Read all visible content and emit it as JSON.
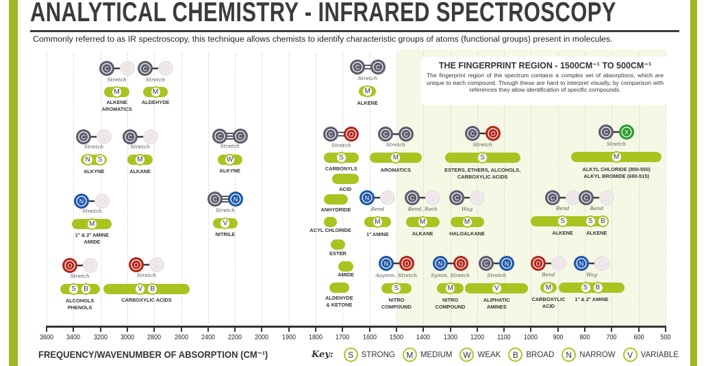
{
  "header": {
    "title": "ANALYTICAL CHEMISTRY - INFRARED SPECTROSCOPY",
    "subtitle": "Commonly referred to as IR spectroscopy, this technique allows chemists to identify characteristic groups of atoms (functional groups) present in molecules."
  },
  "fingerprint": {
    "title": "THE FINGERPRINT REGION - 1500CM⁻¹ TO 500CM⁻¹",
    "body": "The fingerprint region of the spectrum contains a complex set of absorptions, which are unique to each compound. Though these are hard to interpret visually, by comparison with references they allow identification of specific compounds.",
    "range": [
      1500,
      500
    ]
  },
  "axis": {
    "title": "FREQUENCY/WAVENUMBER OF ABSORPTION (CM⁻¹)",
    "ticks": [
      3600,
      3400,
      3200,
      3000,
      2800,
      2600,
      2400,
      2200,
      2000,
      1900,
      1800,
      1700,
      1600,
      1500,
      1400,
      1300,
      1200,
      1100,
      1000,
      900,
      800,
      700,
      600,
      500
    ]
  },
  "key": {
    "label": "Key:",
    "items": [
      {
        "code": "S",
        "text": "STRONG"
      },
      {
        "code": "M",
        "text": "MEDIUM"
      },
      {
        "code": "W",
        "text": "WEAK"
      },
      {
        "code": "B",
        "text": "BROAD"
      },
      {
        "code": "N",
        "text": "NARROW"
      },
      {
        "code": "V",
        "text": "VARIABLE"
      }
    ]
  },
  "colors": {
    "bar": "#a8c421",
    "C": "#5d5d6e",
    "H": "#ebe3e6",
    "O": "#b3281b",
    "N": "#1d58a8",
    "X": "#2f9a33",
    "border": "#9dbb1e",
    "fingerprint_bg": "#f6f8e6"
  },
  "items": [
    {
      "id": "a1",
      "atoms": [
        "C",
        "H"
      ],
      "bond": "single",
      "motion": "Stretch",
      "range": [
        3170,
        2985
      ],
      "badges": [
        "M"
      ],
      "label": [
        "ALKENE",
        "AROMATICS"
      ]
    },
    {
      "id": "a2",
      "atoms": [
        "C",
        "H"
      ],
      "bond": "single",
      "motion": "Stretch",
      "range": [
        2880,
        2700
      ],
      "badges": [
        "M"
      ],
      "label": [
        "ALDEHYDE"
      ]
    },
    {
      "id": "a3",
      "atoms": [
        "C",
        "H"
      ],
      "bond": "single",
      "motion": "Stretch",
      "range": [
        3345,
        3150
      ],
      "badges": [
        "N",
        "S"
      ],
      "label": [
        "ALKYNE"
      ]
    },
    {
      "id": "a4",
      "atoms": [
        "C",
        "H"
      ],
      "bond": "single",
      "motion": "Stretch",
      "range": [
        3000,
        2810
      ],
      "badges": [
        "M"
      ],
      "label": [
        "ALKANE"
      ]
    },
    {
      "id": "a5",
      "atoms": [
        "C",
        "C"
      ],
      "bond": "triple",
      "motion": "Stretch",
      "range": [
        2330,
        2145
      ],
      "badges": [
        "W"
      ],
      "label": [
        "ALKYNE"
      ]
    },
    {
      "id": "a6",
      "atoms": [
        "N",
        "H"
      ],
      "bond": "single",
      "motion": "Stretch",
      "range": [
        3410,
        3115
      ],
      "badges": [
        "M"
      ],
      "label": [
        "1° & 2° AMINE",
        "AMIDE"
      ]
    },
    {
      "id": "a7",
      "atoms": [
        "C",
        "N"
      ],
      "bond": "triple",
      "motion": "Stretch",
      "range": [
        2365,
        2180
      ],
      "badges": [
        "V"
      ],
      "label": [
        "NITRILE"
      ]
    },
    {
      "id": "a8",
      "atoms": [
        "O",
        "H"
      ],
      "bond": "single",
      "motion": "Stretch",
      "range": [
        3500,
        3205
      ],
      "badges": [
        "S",
        "B"
      ],
      "label": [
        "ALCOHOLS",
        "PHENOLS"
      ]
    },
    {
      "id": "a9",
      "atoms": [
        "O",
        "H"
      ],
      "bond": "single",
      "motion": "Stretch",
      "range": [
        3180,
        2535
      ],
      "badges": [
        "V",
        "B"
      ],
      "label": [
        "CARBOXYLIC ACIDS"
      ]
    },
    {
      "id": "b1",
      "atoms": [
        "C",
        "C"
      ],
      "bond": "double",
      "motion": "Stretch",
      "range": [
        1640,
        1575
      ],
      "badges": [
        "M"
      ],
      "label": [
        "ALKENE"
      ]
    },
    {
      "id": "b2",
      "atoms": [
        "C",
        "O"
      ],
      "bond": "double",
      "motion": "Stretch",
      "range": [
        1770,
        1640
      ],
      "badges": [
        "S"
      ],
      "label": [
        "CARBONYLS"
      ]
    },
    {
      "id": "b3",
      "range": [
        1740,
        1640
      ],
      "badges": [],
      "label": [
        "ACID"
      ]
    },
    {
      "id": "b4",
      "range": [
        1770,
        1680
      ],
      "badges": [],
      "label": [
        "ANHYDRIDE"
      ]
    },
    {
      "id": "b5",
      "range": [
        1770,
        1720
      ],
      "badges": [],
      "label": [
        "ACYL CHLORIDE"
      ]
    },
    {
      "id": "b6",
      "range": [
        1745,
        1690
      ],
      "badges": [],
      "label": [
        "ESTER"
      ]
    },
    {
      "id": "b7",
      "range": [
        1715,
        1660
      ],
      "badges": [],
      "label": [
        "AMIDE"
      ]
    },
    {
      "id": "b8",
      "range": [
        1750,
        1675
      ],
      "badges": [],
      "label": [
        "ALDEHYDE",
        "& KETONE"
      ]
    },
    {
      "id": "b9",
      "atoms": [
        "C",
        "C"
      ],
      "bond": "single",
      "motion": "Stretch",
      "range": [
        1600,
        1405
      ],
      "badges": [
        "M"
      ],
      "label": [
        "AROMATICS"
      ]
    },
    {
      "id": "b10",
      "atoms": [
        "N",
        "H"
      ],
      "bond": "single",
      "motion": "Bend",
      "range": [
        1620,
        1520
      ],
      "badges": [
        "M"
      ],
      "label": [
        "1° AMINE"
      ]
    },
    {
      "id": "b11",
      "atoms": [
        "C",
        "H"
      ],
      "bond": "single",
      "motion": "Bend, Rock",
      "range": [
        1465,
        1340
      ],
      "badges": [
        "M"
      ],
      "label": [
        "ALKANE"
      ]
    },
    {
      "id": "b12",
      "atoms": [
        "C",
        "H"
      ],
      "bond": "single",
      "motion": "Wag",
      "range": [
        1300,
        1175
      ],
      "badges": [
        "M"
      ],
      "label": [
        "HALOALKANE"
      ]
    },
    {
      "id": "b13",
      "atoms": [
        "N",
        "O"
      ],
      "bond": "single",
      "motion": "Asymm. Stretch",
      "range": [
        1555,
        1445
      ],
      "badges": [
        "S"
      ],
      "label": [
        "NITRO",
        "COMPOUND"
      ]
    },
    {
      "id": "b14",
      "atoms": [
        "N",
        "O"
      ],
      "bond": "single",
      "motion": "Symm. Stretch",
      "range": [
        1350,
        1250
      ],
      "badges": [
        "M"
      ],
      "label": [
        "NITRO",
        "COMPOUND"
      ]
    },
    {
      "id": "b15",
      "atoms": [
        "C",
        "N"
      ],
      "bond": "single",
      "motion": "Stretch",
      "range": [
        1245,
        1010
      ],
      "badges": [
        "V"
      ],
      "label": [
        "ALIPHATIC",
        "AMINES"
      ]
    },
    {
      "id": "b16",
      "atoms": [
        "C",
        "O"
      ],
      "bond": "single",
      "motion": "Stretch",
      "range": [
        1320,
        1040
      ],
      "badges": [
        "S"
      ],
      "label": [
        "ESTERS, ETHERS, ALCOHOLS,",
        "CARBOXYLIC ACIDS"
      ]
    },
    {
      "id": "b17",
      "atoms": [
        "C",
        "X"
      ],
      "bond": "single",
      "motion": "Stretch",
      "range": [
        850,
        515
      ],
      "badges": [
        "M"
      ],
      "label": [
        "ALKYL CHLORIDE (850-550)",
        "ALKYL BROMIDE (690-515)"
      ]
    },
    {
      "id": "b18",
      "atoms": [
        "C",
        "H"
      ],
      "bond": "single",
      "motion": "Bend",
      "range": [
        1000,
        765
      ],
      "badges": [
        "S"
      ],
      "label": [
        "ALKENE"
      ]
    },
    {
      "id": "b19",
      "atoms": [
        "C",
        "H"
      ],
      "bond": "single",
      "motion": "Bend",
      "range": [
        800,
        712
      ],
      "badges": [
        "S",
        "B"
      ],
      "label": [
        "ALKENE"
      ]
    },
    {
      "id": "b20",
      "atoms": [
        "O",
        "H"
      ],
      "bond": "single",
      "motion": "Bend",
      "range": [
        965,
        905
      ],
      "badges": [
        "M"
      ],
      "label": [
        "CARBOXYLIC",
        "ACID"
      ]
    },
    {
      "id": "b21",
      "atoms": [
        "N",
        "H"
      ],
      "bond": "single",
      "motion": "Wag",
      "range": [
        897,
        652
      ],
      "badges": [
        "S",
        "B"
      ],
      "label": [
        "1° & 2° AMINE"
      ]
    }
  ]
}
